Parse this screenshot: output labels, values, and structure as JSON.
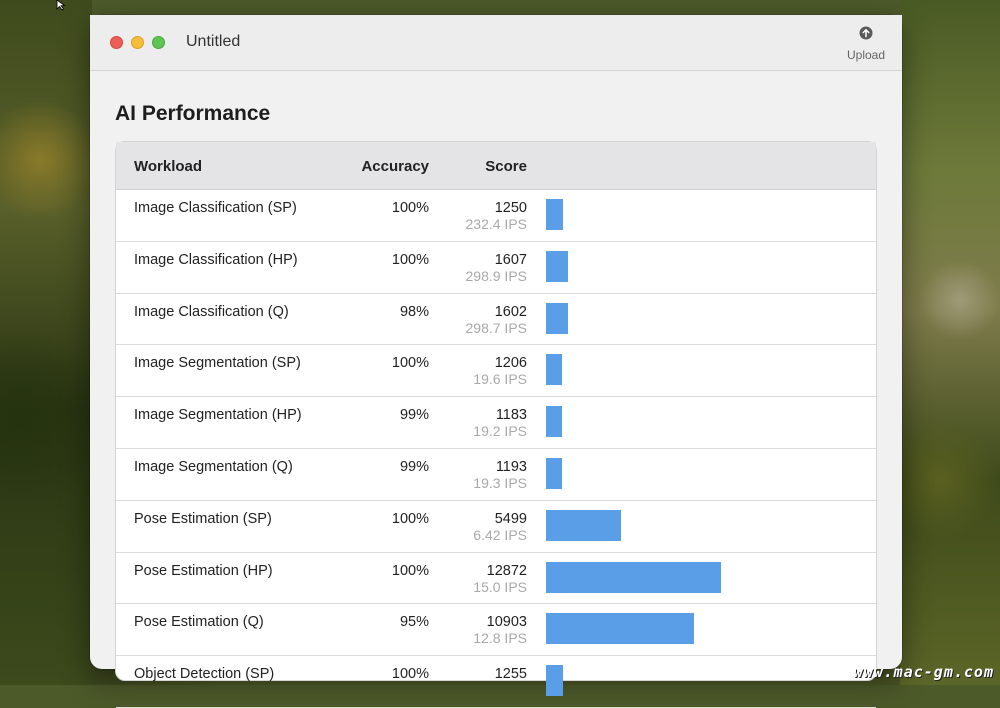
{
  "window": {
    "title": "Untitled",
    "upload_label": "Upload",
    "page_title": "AI Performance"
  },
  "table": {
    "headers": {
      "workload": "Workload",
      "accuracy": "Accuracy",
      "score": "Score"
    },
    "max_score": 12872,
    "rows": [
      {
        "workload": "Image Classification (SP)",
        "accuracy": "100%",
        "score": "1250",
        "ips": "232.4 IPS",
        "value": 1250
      },
      {
        "workload": "Image Classification (HP)",
        "accuracy": "100%",
        "score": "1607",
        "ips": "298.9 IPS",
        "value": 1607
      },
      {
        "workload": "Image Classification (Q)",
        "accuracy": "98%",
        "score": "1602",
        "ips": "298.7 IPS",
        "value": 1602
      },
      {
        "workload": "Image Segmentation (SP)",
        "accuracy": "100%",
        "score": "1206",
        "ips": "19.6 IPS",
        "value": 1206
      },
      {
        "workload": "Image Segmentation (HP)",
        "accuracy": "99%",
        "score": "1183",
        "ips": "19.2 IPS",
        "value": 1183
      },
      {
        "workload": "Image Segmentation (Q)",
        "accuracy": "99%",
        "score": "1193",
        "ips": "19.3 IPS",
        "value": 1193
      },
      {
        "workload": "Pose Estimation (SP)",
        "accuracy": "100%",
        "score": "5499",
        "ips": "6.42 IPS",
        "value": 5499
      },
      {
        "workload": "Pose Estimation (HP)",
        "accuracy": "100%",
        "score": "12872",
        "ips": "15.0 IPS",
        "value": 12872
      },
      {
        "workload": "Pose Estimation (Q)",
        "accuracy": "95%",
        "score": "10903",
        "ips": "12.8 IPS",
        "value": 10903
      },
      {
        "workload": "Object Detection (SP)",
        "accuracy": "100%",
        "score": "1255",
        "ips": "",
        "value": 1255
      }
    ]
  },
  "colors": {
    "bar": "#5b9ee8",
    "close": "#ec5f56",
    "minimize": "#f4bd3a",
    "maximize": "#5fc451"
  },
  "watermark": "www.mac-gm.com"
}
